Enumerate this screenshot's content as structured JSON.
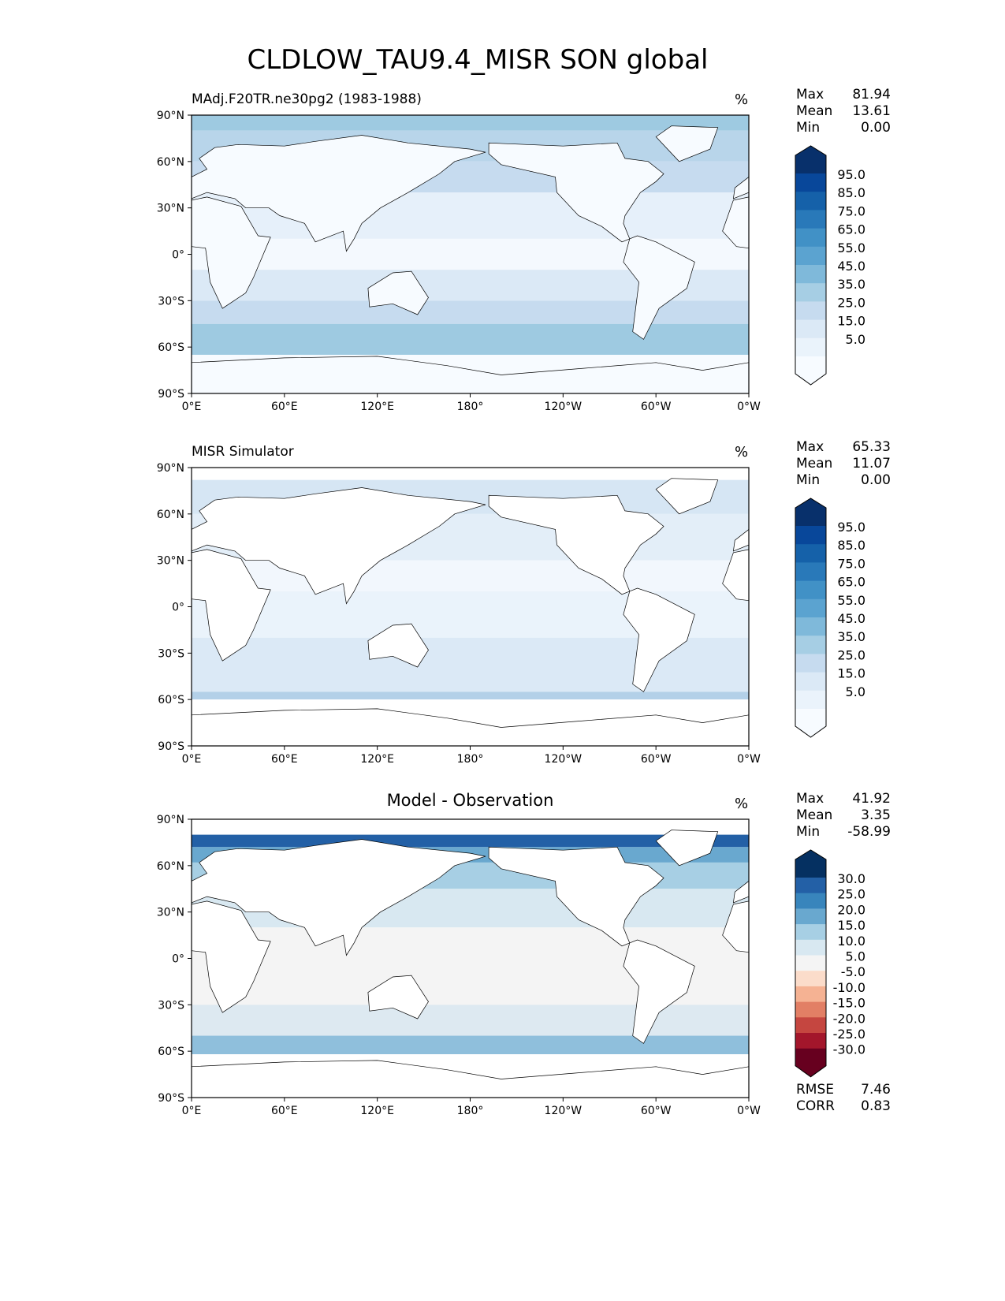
{
  "title": "CLDLOW_TAU9.4_MISR SON global",
  "axes": {
    "lat_ticks": [
      "90°N",
      "60°N",
      "30°N",
      "0°",
      "30°S",
      "60°S",
      "90°S"
    ],
    "lon_ticks": [
      "0°E",
      "60°E",
      "120°E",
      "180°",
      "120°W",
      "60°W",
      "0°W"
    ]
  },
  "panels": [
    {
      "subtitle": "MAdj.F20TR.ne30pg2 (1983-1988)",
      "units": "%",
      "stats": {
        "max_label": "Max",
        "max": "81.94",
        "mean_label": "Mean",
        "mean": "13.61",
        "min_label": "Min",
        "min": "0.00"
      },
      "colorbar": {
        "labels": [
          "95.0",
          "85.0",
          "75.0",
          "65.0",
          "55.0",
          "45.0",
          "35.0",
          "25.0",
          "15.0",
          "5.0"
        ],
        "colors": [
          "#08306b",
          "#08479a",
          "#1561a9",
          "#2979b9",
          "#4191c6",
          "#5ba3d0",
          "#7fb9da",
          "#a6cee4",
          "#c6dbef",
          "#dbe9f6",
          "#eaf3fb",
          "#f7fbff"
        ]
      }
    },
    {
      "subtitle": "MISR Simulator",
      "units": "%",
      "stats": {
        "max_label": "Max",
        "max": "65.33",
        "mean_label": "Mean",
        "mean": "11.07",
        "min_label": "Min",
        "min": "0.00"
      },
      "colorbar": {
        "labels": [
          "95.0",
          "85.0",
          "75.0",
          "65.0",
          "55.0",
          "45.0",
          "35.0",
          "25.0",
          "15.0",
          "5.0"
        ],
        "colors": [
          "#08306b",
          "#08479a",
          "#1561a9",
          "#2979b9",
          "#4191c6",
          "#5ba3d0",
          "#7fb9da",
          "#a6cee4",
          "#c6dbef",
          "#dbe9f6",
          "#eaf3fb",
          "#f7fbff"
        ]
      }
    },
    {
      "subtitle": "Model - Observation",
      "units": "%",
      "stats": {
        "max_label": "Max",
        "max": "41.92",
        "mean_label": "Mean",
        "mean": "3.35",
        "min_label": "Min",
        "min": "-58.99"
      },
      "colorbar": {
        "labels": [
          "30.0",
          "25.0",
          "20.0",
          "15.0",
          "10.0",
          "5.0",
          "-5.0",
          "-10.0",
          "-15.0",
          "-20.0",
          "-25.0",
          "-30.0"
        ],
        "colors": [
          "#053061",
          "#2360a6",
          "#3885bc",
          "#69a8cf",
          "#a7cfe4",
          "#d8e8f1",
          "#f4f4f4",
          "#fbdcca",
          "#f5b293",
          "#e27f65",
          "#c54640",
          "#a3162b",
          "#67001f"
        ]
      },
      "metrics": {
        "rmse_label": "RMSE",
        "rmse": "7.46",
        "corr_label": "CORR",
        "corr": "0.83"
      }
    }
  ]
}
